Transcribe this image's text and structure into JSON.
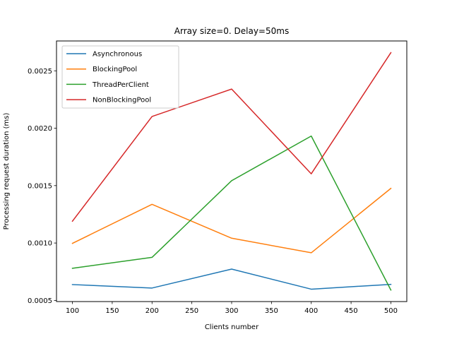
{
  "chart_data": {
    "type": "line",
    "title": "Array size=0. Delay=50ms",
    "xlabel": "Clients number",
    "ylabel": "Processing request duration (ms)",
    "x": [
      100,
      200,
      300,
      400,
      500
    ],
    "xlim": [
      80,
      520
    ],
    "ylim": [
      0.00049,
      0.00276
    ],
    "xticks": [
      100,
      150,
      200,
      250,
      300,
      350,
      400,
      450,
      500
    ],
    "yticks": [
      0.0005,
      0.001,
      0.0015,
      0.002,
      0.0025
    ],
    "ytick_labels": [
      "0.0005",
      "0.0010",
      "0.0015",
      "0.0020",
      "0.0025"
    ],
    "grid": false,
    "legend_position": "top-left",
    "series": [
      {
        "name": "Asynchronous",
        "color": "#1f77b4",
        "values": [
          0.000638,
          0.000608,
          0.000773,
          0.000598,
          0.00064
        ]
      },
      {
        "name": "BlockingPool",
        "color": "#ff7f0e",
        "values": [
          0.000997,
          0.001337,
          0.001042,
          0.000915,
          0.001476
        ]
      },
      {
        "name": "ThreadPerClient",
        "color": "#2ca02c",
        "values": [
          0.00078,
          0.000875,
          0.001543,
          0.001932,
          0.00059
        ]
      },
      {
        "name": "NonBlockingPool",
        "color": "#d62728",
        "values": [
          0.00119,
          0.002102,
          0.002341,
          0.001603,
          0.002658
        ]
      }
    ]
  }
}
